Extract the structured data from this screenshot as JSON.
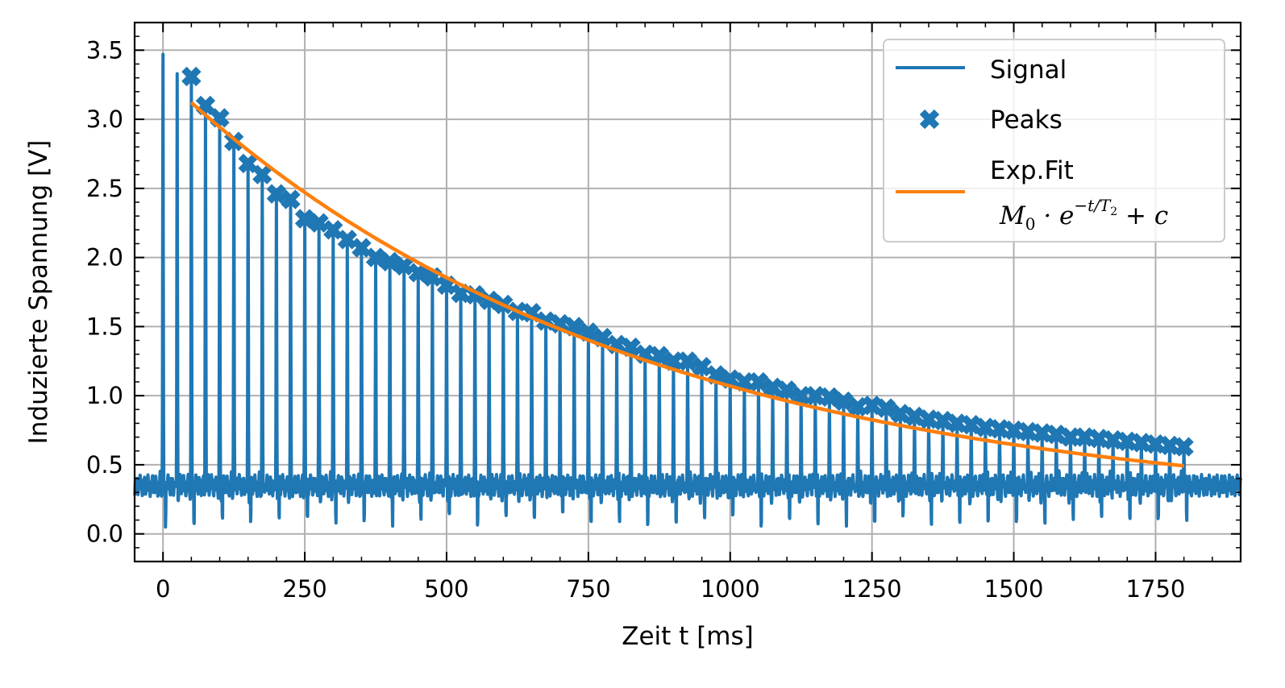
{
  "chart_data": {
    "type": "line",
    "xlabel": "Zeit t [ms]",
    "ylabel": "Induzierte Spannung [V]",
    "xlim": [
      -50,
      1900
    ],
    "ylim": [
      -0.2,
      3.7
    ],
    "xticks": [
      0,
      250,
      500,
      750,
      1000,
      1250,
      1500,
      1750
    ],
    "yticks": [
      0.0,
      0.5,
      1.0,
      1.5,
      2.0,
      2.5,
      3.0,
      3.5
    ],
    "xtick_labels": [
      "0",
      "250",
      "500",
      "750",
      "1000",
      "1250",
      "1500",
      "1750"
    ],
    "ytick_labels": [
      "0.0",
      "0.5",
      "1.0",
      "1.5",
      "2.0",
      "2.5",
      "3.0",
      "3.5"
    ],
    "grid": true,
    "legend_position": "top-right",
    "colors": {
      "signal": "#1f77b4",
      "peaks": "#1f77b4",
      "fit": "#ff7f0e"
    },
    "legend": {
      "signal": "Signal",
      "peaks": "Peaks",
      "fit_line1": "Exp.Fit",
      "fit_formula_base": "M",
      "fit_formula_sub": "0",
      "fit_formula_mid": " · e",
      "fit_formula_exp": "−t/T",
      "fit_formula_exp_sub": "2",
      "fit_formula_tail": " + c"
    },
    "signal": {
      "baseline": 0.35,
      "pulse_interval": 25,
      "first_pulse": 0,
      "last_pulse": 1800,
      "initial_pulse_peak": 3.47
    },
    "peaks": {
      "x": [
        50,
        75,
        100,
        125,
        150,
        175,
        200,
        225,
        250,
        275,
        300,
        325,
        350,
        375,
        400,
        425,
        450,
        475,
        500,
        525,
        550,
        575,
        600,
        625,
        650,
        675,
        700,
        725,
        750,
        775,
        800,
        825,
        850,
        875,
        900,
        925,
        950,
        975,
        1000,
        1025,
        1050,
        1075,
        1100,
        1125,
        1150,
        1175,
        1200,
        1225,
        1250,
        1275,
        1300,
        1325,
        1350,
        1375,
        1400,
        1425,
        1450,
        1475,
        1500,
        1525,
        1550,
        1575,
        1600,
        1625,
        1650,
        1675,
        1700,
        1725,
        1750,
        1775,
        1800
      ],
      "y": [
        3.31,
        3.1,
        3.01,
        2.84,
        2.68,
        2.6,
        2.46,
        2.42,
        2.28,
        2.25,
        2.2,
        2.13,
        2.07,
        2.0,
        1.97,
        1.94,
        1.89,
        1.86,
        1.8,
        1.74,
        1.73,
        1.69,
        1.66,
        1.61,
        1.6,
        1.54,
        1.52,
        1.5,
        1.46,
        1.42,
        1.37,
        1.35,
        1.3,
        1.29,
        1.25,
        1.25,
        1.21,
        1.15,
        1.12,
        1.1,
        1.1,
        1.06,
        1.04,
        1.0,
        1.0,
        0.99,
        0.96,
        0.92,
        0.93,
        0.91,
        0.87,
        0.85,
        0.83,
        0.82,
        0.8,
        0.79,
        0.77,
        0.76,
        0.75,
        0.74,
        0.73,
        0.72,
        0.7,
        0.7,
        0.69,
        0.68,
        0.67,
        0.66,
        0.65,
        0.64,
        0.63
      ]
    },
    "fit": {
      "x_range": [
        50,
        1800
      ],
      "M0": 3.16,
      "T2": 810,
      "c": 0.15
    }
  }
}
